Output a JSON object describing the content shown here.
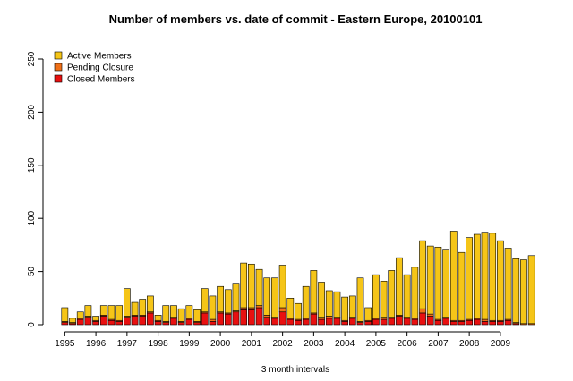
{
  "chart_data": {
    "type": "bar",
    "stacked": true,
    "title": "Number of members vs. date of commit - Eastern Europe,  20100101",
    "xlabel": "3 month intervals",
    "ylabel": "",
    "ylim": [
      0,
      250
    ],
    "yticks": [
      0,
      50,
      100,
      150,
      200,
      250
    ],
    "x_tick_labels": [
      "1995",
      "1996",
      "1997",
      "1998",
      "1999",
      "2000",
      "2001",
      "2002",
      "2003",
      "2004",
      "2005",
      "2006",
      "2007",
      "2008",
      "2009"
    ],
    "legend_position": "top-left",
    "series": [
      {
        "name": "Active Members",
        "color": "#F5C518",
        "values": [
          13,
          4,
          6,
          10,
          4,
          9,
          13,
          14,
          26,
          12,
          15,
          15,
          5,
          15,
          11,
          12,
          12,
          11,
          22,
          22,
          24,
          22,
          26,
          42,
          41,
          34,
          35,
          37,
          40,
          19,
          15,
          30,
          40,
          33,
          24,
          24,
          22,
          20,
          41,
          12,
          41,
          34,
          44,
          54,
          40,
          48,
          64,
          64,
          68,
          64,
          84,
          64,
          77,
          79,
          82,
          82,
          75,
          67,
          60,
          60,
          64
        ]
      },
      {
        "name": "Pending Closure",
        "color": "#F07018",
        "values": [
          1,
          1,
          1,
          1,
          1,
          1,
          1,
          1,
          1,
          1,
          1,
          1,
          1,
          1,
          1,
          1,
          1,
          1,
          1,
          2,
          1,
          1,
          1,
          2,
          2,
          2,
          2,
          1,
          4,
          1,
          1,
          1,
          1,
          2,
          2,
          1,
          1,
          1,
          1,
          1,
          1,
          2,
          1,
          1,
          1,
          1,
          4,
          2,
          1,
          1,
          1,
          1,
          1,
          1,
          2,
          1,
          1,
          1,
          1,
          1,
          1
        ]
      },
      {
        "name": "Closed Members",
        "color": "#E81010",
        "values": [
          2,
          1,
          5,
          7,
          3,
          8,
          4,
          3,
          7,
          8,
          8,
          11,
          3,
          2,
          6,
          2,
          5,
          2,
          11,
          3,
          11,
          10,
          12,
          14,
          14,
          16,
          7,
          6,
          12,
          5,
          4,
          5,
          10,
          5,
          6,
          6,
          3,
          6,
          2,
          3,
          5,
          5,
          6,
          8,
          6,
          5,
          11,
          8,
          4,
          6,
          3,
          3,
          4,
          5,
          3,
          3,
          3,
          4,
          1,
          0,
          0
        ]
      }
    ]
  }
}
